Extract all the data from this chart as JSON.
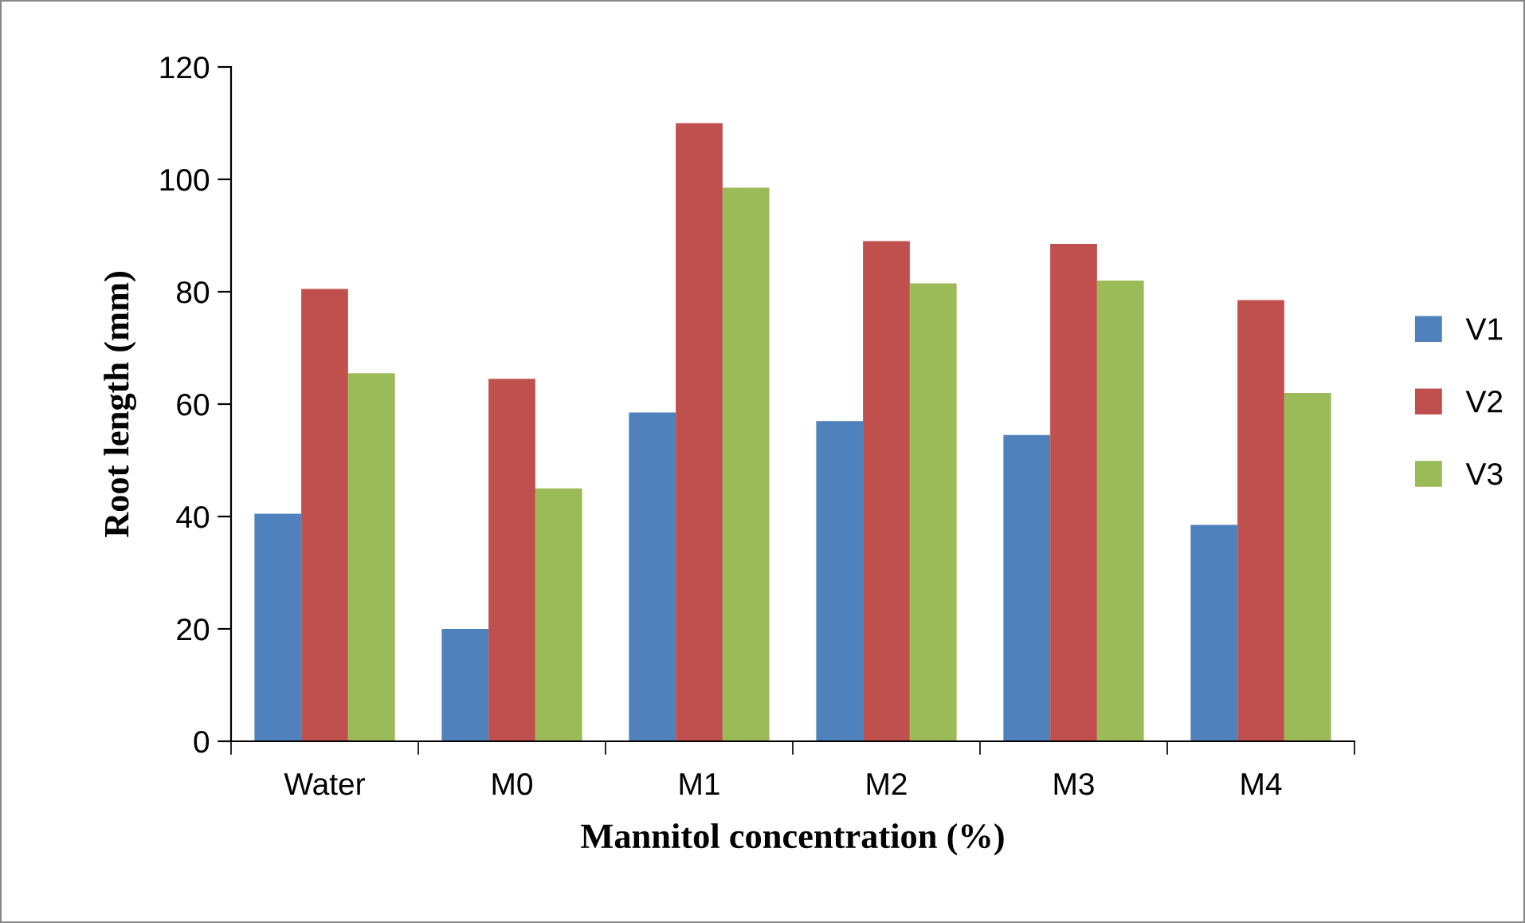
{
  "chart_data": {
    "type": "bar",
    "xlabel": "Mannitol concentration (%)",
    "ylabel": "Root length (mm)",
    "categories": [
      "Water",
      "M0",
      "M1",
      "M2",
      "M3",
      "M4"
    ],
    "series": [
      {
        "name": "V1",
        "color": "#4f81bd",
        "values": [
          40.5,
          20,
          58.5,
          57,
          54.5,
          38.5
        ]
      },
      {
        "name": "V2",
        "color": "#c0504d",
        "values": [
          80.5,
          64.5,
          110,
          89,
          88.5,
          78.5
        ]
      },
      {
        "name": "V3",
        "color": "#9bbb59",
        "values": [
          65.5,
          45,
          98.5,
          81.5,
          82,
          62
        ]
      }
    ],
    "ylim": [
      0,
      120
    ],
    "yticks": [
      0,
      20,
      40,
      60,
      80,
      100,
      120
    ],
    "grid": false,
    "legend": "right"
  }
}
